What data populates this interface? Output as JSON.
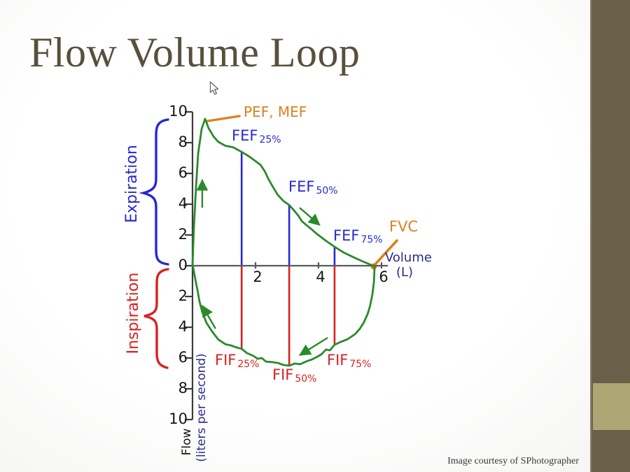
{
  "slide": {
    "title": "Flow Volume Loop",
    "credit": "Image courtesy of SPhotographer"
  },
  "colors": {
    "curve_green": "#2a8a2a",
    "expiration_blue": "#2929cf",
    "inspiration_red": "#da2020",
    "accent_orange": "#d9821f",
    "axis_navy": "#2b2b8f",
    "sidebar_dark": "#696049",
    "sidebar_khaki": "#ada674"
  },
  "chart_data": {
    "type": "line",
    "title": "Flow Volume Loop",
    "xlabel_line1": "Volume",
    "xlabel_line2": "(L)",
    "ylabel_line1": "Flow",
    "ylabel_line2": "(liters per second)",
    "xlim": [
      0,
      6.2
    ],
    "ylim": [
      -10,
      10
    ],
    "grid": false,
    "regions": {
      "upper": "Expiration",
      "lower": "Inspiration"
    },
    "x_ticks": [
      {
        "v": 2,
        "label": "2"
      },
      {
        "v": 4,
        "label": "4"
      },
      {
        "v": 6,
        "label": "6"
      }
    ],
    "y_ticks": [
      {
        "v": 10,
        "label": "10"
      },
      {
        "v": 8,
        "label": "8"
      },
      {
        "v": 6,
        "label": "6"
      },
      {
        "v": 4,
        "label": "4"
      },
      {
        "v": 2,
        "label": "2"
      },
      {
        "v": 0,
        "label": "0"
      },
      {
        "v": -2,
        "label": "2"
      },
      {
        "v": -4,
        "label": "4"
      },
      {
        "v": -6,
        "label": "6"
      },
      {
        "v": -8,
        "label": "8"
      },
      {
        "v": -10,
        "label": "10"
      }
    ],
    "key_points": {
      "peak_expiratory_flow": 9.55,
      "fvc_volume_l": 5.73,
      "pef_label": "PEF, MEF",
      "fvc_label": "FVC"
    },
    "labels": {
      "fef25": {
        "main": "FEF",
        "sub": "25%"
      },
      "fef50": {
        "main": "FEF",
        "sub": "50%"
      },
      "fef75": {
        "main": "FEF",
        "sub": "75%"
      },
      "fif25": {
        "main": "FIF",
        "sub": "25%"
      },
      "fif50": {
        "main": "FIF",
        "sub": "50%"
      },
      "fif75": {
        "main": "FIF",
        "sub": "75%"
      }
    },
    "markers": [
      {
        "name": "FEF 25%",
        "vol": 1.56,
        "flow": 7.4,
        "color": "#2929cf"
      },
      {
        "name": "FEF 50%",
        "vol": 3.07,
        "flow": 3.95,
        "color": "#2929cf"
      },
      {
        "name": "FEF 75%",
        "vol": 4.51,
        "flow": 1.23,
        "color": "#2929cf"
      },
      {
        "name": "FIF 25%",
        "vol": 1.56,
        "flow": -5.4,
        "color": "#da2020"
      },
      {
        "name": "FIF 50%",
        "vol": 3.07,
        "flow": -6.5,
        "color": "#da2020"
      },
      {
        "name": "FIF 75%",
        "vol": 4.51,
        "flow": -5.14,
        "color": "#da2020"
      }
    ],
    "series": [
      {
        "name": "expiration-limb",
        "color": "#2a8a2a",
        "points": [
          [
            0,
            0
          ],
          [
            0.04,
            2.3
          ],
          [
            0.11,
            5.0
          ],
          [
            0.18,
            7.3
          ],
          [
            0.29,
            8.9
          ],
          [
            0.4,
            9.55
          ],
          [
            0.51,
            8.95
          ],
          [
            0.67,
            8.4
          ],
          [
            0.82,
            8.05
          ],
          [
            1.04,
            7.8
          ],
          [
            1.29,
            7.7
          ],
          [
            1.56,
            7.4
          ],
          [
            1.8,
            7.1
          ],
          [
            2.0,
            6.8
          ],
          [
            2.16,
            6.55
          ],
          [
            2.29,
            6.15
          ],
          [
            2.42,
            5.6
          ],
          [
            2.56,
            5.1
          ],
          [
            2.71,
            4.6
          ],
          [
            2.89,
            4.2
          ],
          [
            3.07,
            3.95
          ],
          [
            3.24,
            3.55
          ],
          [
            3.38,
            3.2
          ],
          [
            3.47,
            2.9
          ],
          [
            3.58,
            2.7
          ],
          [
            3.76,
            2.4
          ],
          [
            3.96,
            2.05
          ],
          [
            4.22,
            1.64
          ],
          [
            4.51,
            1.23
          ],
          [
            4.8,
            0.86
          ],
          [
            5.11,
            0.55
          ],
          [
            5.42,
            0.27
          ],
          [
            5.73,
            0
          ]
        ]
      },
      {
        "name": "inspiration-limb",
        "color": "#2a8a2a",
        "points": [
          [
            0.02,
            -0.1
          ],
          [
            0.09,
            -0.9
          ],
          [
            0.16,
            -1.6
          ],
          [
            0.22,
            -2.3
          ],
          [
            0.31,
            -3.0
          ],
          [
            0.44,
            -3.7
          ],
          [
            0.62,
            -4.27
          ],
          [
            0.82,
            -4.8
          ],
          [
            1.04,
            -5.1
          ],
          [
            1.22,
            -5.18
          ],
          [
            1.38,
            -5.3
          ],
          [
            1.56,
            -5.4
          ],
          [
            1.73,
            -5.68
          ],
          [
            1.93,
            -5.86
          ],
          [
            2.07,
            -6.05
          ],
          [
            2.2,
            -6.0
          ],
          [
            2.33,
            -6.23
          ],
          [
            2.53,
            -6.27
          ],
          [
            2.71,
            -6.32
          ],
          [
            2.89,
            -6.45
          ],
          [
            3.07,
            -6.5
          ],
          [
            3.24,
            -6.36
          ],
          [
            3.42,
            -6.4
          ],
          [
            3.6,
            -6.23
          ],
          [
            3.78,
            -6.1
          ],
          [
            3.93,
            -5.95
          ],
          [
            4.09,
            -5.77
          ],
          [
            4.24,
            -5.45
          ],
          [
            4.36,
            -5.5
          ],
          [
            4.51,
            -5.14
          ],
          [
            4.71,
            -4.95
          ],
          [
            4.93,
            -4.77
          ],
          [
            5.16,
            -4.45
          ],
          [
            5.31,
            -4.1
          ],
          [
            5.44,
            -3.68
          ],
          [
            5.56,
            -3.14
          ],
          [
            5.64,
            -2.59
          ],
          [
            5.71,
            -1.86
          ],
          [
            5.76,
            -1.05
          ],
          [
            5.78,
            -0.1
          ]
        ]
      }
    ],
    "arrows": [
      {
        "x1": 0.31,
        "f1": 3.77,
        "x2": 0.31,
        "f2": 5.59
      },
      {
        "x1": 3.4,
        "f1": 3.77,
        "x2": 4.04,
        "f2": 2.64
      },
      {
        "x1": 4.29,
        "f1": -4.68,
        "x2": 3.4,
        "f2": -5.82
      },
      {
        "x1": 0.73,
        "f1": -4.09,
        "x2": 0.31,
        "f2": -2.59
      }
    ]
  }
}
